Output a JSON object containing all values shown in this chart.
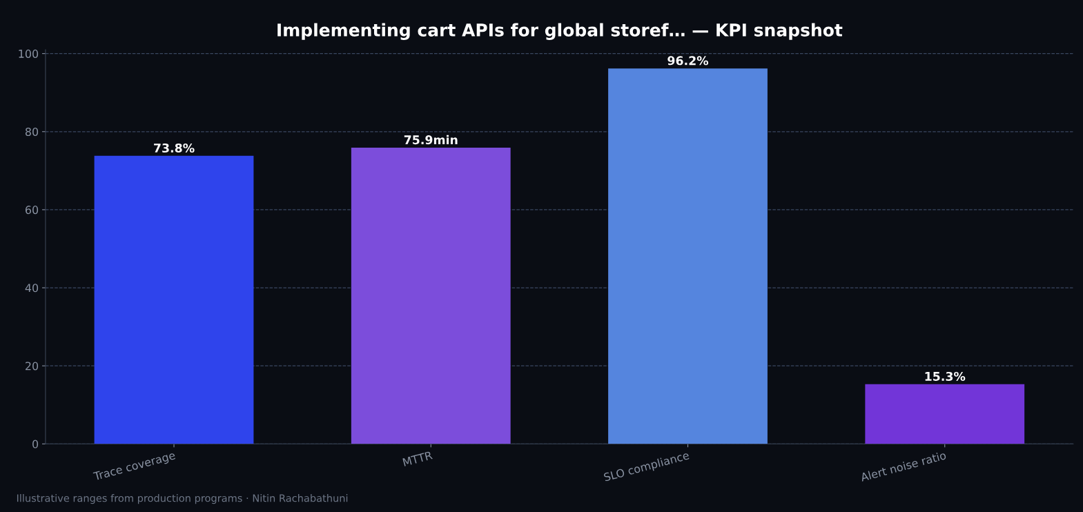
{
  "chart_data": {
    "type": "bar",
    "title": "Implementing cart APIs for global storef… — KPI snapshot",
    "categories": [
      "Trace coverage",
      "MTTR",
      "SLO compliance",
      "Alert noise ratio"
    ],
    "values": [
      73.8,
      75.9,
      96.2,
      15.3
    ],
    "value_labels": [
      "73.8%",
      "75.9min",
      "96.2%",
      "15.3%"
    ],
    "colors": [
      "#2f44ec",
      "#7c4ddb",
      "#5585de",
      "#7235d8"
    ],
    "ylim": [
      0,
      101
    ],
    "yticks": [
      0,
      20,
      40,
      60,
      80,
      100
    ],
    "grid": "y",
    "annotations": [
      "Illustrative ranges from production programs · Nitin Rachabathuni"
    ]
  }
}
